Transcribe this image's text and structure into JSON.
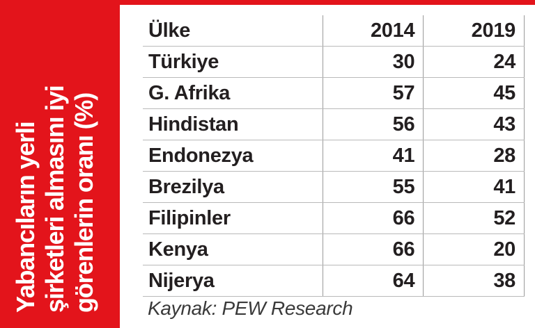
{
  "title_lines": [
    "Yabancıların yerli",
    "şirketleri almasını iyi",
    "görenlerin oranı (%)"
  ],
  "table": {
    "header": [
      "Ülke",
      "2014",
      "2019"
    ],
    "rows": [
      [
        "Türkiye",
        30,
        24
      ],
      [
        "G. Afrika",
        57,
        45
      ],
      [
        "Hindistan",
        56,
        43
      ],
      [
        "Endonezya",
        41,
        28
      ],
      [
        "Brezilya",
        55,
        41
      ],
      [
        "Filipinler",
        66,
        52
      ],
      [
        "Kenya",
        66,
        20
      ],
      [
        "Nijerya",
        64,
        38
      ]
    ]
  },
  "source": "Kaynak: PEW Research"
}
